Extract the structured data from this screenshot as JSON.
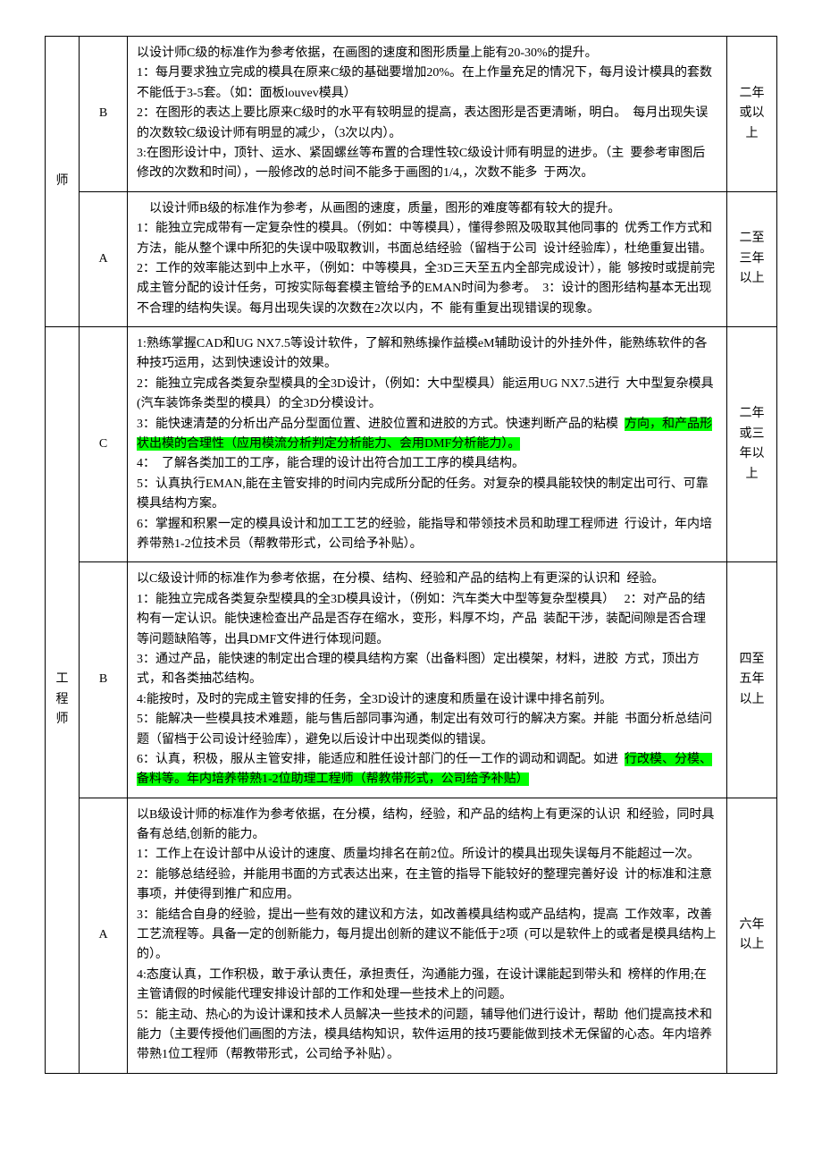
{
  "highlight_color": "#00ff00",
  "rows": [
    {
      "role": "师",
      "grade": "B",
      "years": "二年或以上",
      "desc_parts": [
        {
          "text": "以设计师C级的标准作为参考依据，在画图的速度和图形质量上能有20-30%的提升。\n1：每月要求独立完成的模具在原来C级的基础要增加20%。在上作量充足的情况下，每月设计模具的套数不能低于3-5套。（如：面板louvev模具）\n2：在图形的表达上要比原来C级时的水平有较明显的提高，表达图形是否更清晰，明白。  每月出现失误的次数较C级设计师有明显的减少，（3次以内）。\n3:在图形设计中，顶针、运水、紧固螺丝等布置的合理性较C级设计师有明显的进步。（主  要参考审图后修改的次数和时间），一般修改的总时间不能多于画图的1/4,，次数不能多  于两次。",
          "highlight": false
        }
      ]
    },
    {
      "role": "",
      "grade": "A",
      "years": "二至三年以上",
      "desc_parts": [
        {
          "text": "    以设计师B级的标准作为参考，从画图的速度，质量，图形的难度等都有较大的提升。\n1：能独立完成带有一定复杂性的模具。（例如：中等模具），懂得参照及吸取其他同事的  优秀工作方式和方法，能从整个课中所犯的失误中吸取教训，书面总结经验（留档于公司  设计经验库），杜绝重复出错。\n2：工作的效率能达到中上水平，（例如：中等模具，全3D三天至五内全部完成设计），能  够按时或提前完成主管分配的设计任务，可按实际每套模主管给予的EMAN时间为参考。  3：设计的图形结构基本无出现不合理的结构失误。每月出现失误的次数在2次以内，不  能有重复出现错误的现象。",
          "highlight": false
        }
      ]
    },
    {
      "role": "工程师",
      "grade": "C",
      "years": "二年或三年以上",
      "desc_parts": [
        {
          "text": "1:熟练掌握CAD和UG NX7.5等设计软件，了解和熟练操作益模eM辅助设计的外挂外件，能熟练软件的各种技巧运用，达到快速设计的效果。\n2：能独立完成各类复杂型模具的全3D设计，（例如：大中型模具）能运用UG NX7.5进行  大中型复杂模具(汽车装饰条类型的模具）的全3D分模设计。\n3：能快速清楚的分析出产品分型面位置、进胶位置和进胶的方式。快速判断产品的粘模  ",
          "highlight": false
        },
        {
          "text": "方向，和产品形状出模的合理性（应用模流分析判定分析能力、会用DMF分析能力）。",
          "highlight": true
        },
        {
          "text": "\n4：  了解各类加工的工序，能合理的设计出符合加工工序的模具结构。\n5：认真执行EMAN,能在主管安排的时间内完成所分配的任务。对复杂的模具能较快的制定出可行、可靠模具结构方案。\n6：掌握和积累一定的模具设计和加工工艺的经验，能指导和带领技术员和助理工程师进  行设计，年内培养带熟1-2位技术员（帮教带形式，公司给予补贴）。",
          "highlight": false
        }
      ]
    },
    {
      "role": "",
      "grade": "B",
      "years": "四至五年以上",
      "desc_parts": [
        {
          "text": "以C级设计师的标准作为参考依据，在分模、结构、经验和产品的结构上有更深的认识和  经验。\n1：能独立完成各类复杂型模具的全3D模具设计，（例如：汽车类大中型等复杂型模具）   2：对产品的结构有一定认识。能快速检查出产品是否存在缩水，变形，料厚不均，产品  装配干涉，装配间隙是否合理等问题缺陷等，出具DMF文件进行体现问题。\n3：通过产品，能快速的制定出合理的模具结构方案（出备料图）定出模架，材料，进胶  方式，顶出方式，和各类抽芯结构。\n4:能按时，及时的完成主管安排的任务，全3D设计的速度和质量在设计课中排名前列。\n5：能解决一些模具技术难题，能与售后部同事沟通，制定出有效可行的解决方案。并能  书面分析总结问题（留档于公司设计经验库），避免以后设计中出现类似的错误。\n6：认真，积极，服从主管安排，能适应和胜任设计部门的任一工作的调动和调配。如进  ",
          "highlight": false
        },
        {
          "text": "行改模、分模、备料等。年内培养带熟1-2位助理工程师（帮教带形式，公司给予补贴）",
          "highlight": true
        }
      ]
    },
    {
      "role": "",
      "grade": "A",
      "years": "六年以上",
      "desc_parts": [
        {
          "text": "以B级设计师的标准作为参考依据，在分模，结构，经验，和产品的结构上有更深的认识  和经验，同时具备有总结,创新的能力。\n1：工作上在设计部中从设计的速度、质量均排名在前2位。所设计的模具出现失误每月不能超过一次。\n2：能够总结经验，并能用书面的方式表达出来，在主管的指导下能较好的整理完善好设  计的标准和注意事项，并使得到推广和应用。\n3：能结合自身的经验，提出一些有效的建议和方法，如改善模具结构或产品结构，提高  工作效率，改善工艺流程等。具备一定的创新能力，每月提出创新的建议不能低于2项  (可以是软件上的或者是模具结构上的）。\n4:态度认真，工作积极，敢于承认责任，承担责任，沟通能力强，在设计课能起到带头和  榜样的作用;在主管请假的时候能代理安排设计部的工作和处理一些技术上的问题。\n5：能主动、热心的为设计课和技术人员解决一些技术的问题，辅导他们进行设计，帮助  他们提高技术和能力（主要传授他们画图的方法，模具结构知识，软件运用的技巧要能做到技术无保留的心态。年内培养带熟1位工程师（帮教带形式，公司给予补贴）。",
          "highlight": false
        }
      ]
    }
  ]
}
